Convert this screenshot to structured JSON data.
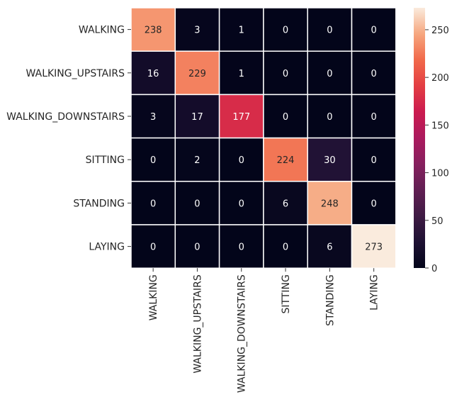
{
  "chart_data": {
    "type": "heatmap",
    "title": "",
    "xlabel": "",
    "ylabel": "",
    "row_labels": [
      "WALKING",
      "WALKING_UPSTAIRS",
      "WALKING_DOWNSTAIRS",
      "SITTING",
      "STANDING",
      "LAYING"
    ],
    "col_labels": [
      "WALKING",
      "WALKING_UPSTAIRS",
      "WALKING_DOWNSTAIRS",
      "SITTING",
      "STANDING",
      "LAYING"
    ],
    "values": [
      [
        238,
        3,
        1,
        0,
        0,
        0
      ],
      [
        16,
        229,
        1,
        0,
        0,
        0
      ],
      [
        3,
        17,
        177,
        0,
        0,
        0
      ],
      [
        0,
        2,
        0,
        224,
        30,
        0
      ],
      [
        0,
        0,
        0,
        6,
        248,
        0
      ],
      [
        0,
        0,
        0,
        0,
        6,
        273
      ]
    ],
    "colorbar": {
      "min": 0,
      "max": 273,
      "ticks": [
        0,
        50,
        100,
        150,
        200,
        250
      ],
      "colormap": "rocket"
    },
    "annot": true,
    "grid": true,
    "grid_color": "#ffffff"
  }
}
